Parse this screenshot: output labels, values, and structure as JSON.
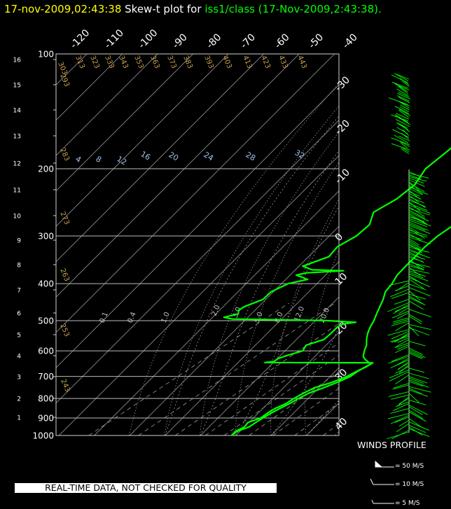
{
  "header": {
    "datetime": "17-nov-2009,02:43:38",
    "title_prefix": " Skew-t plot for ",
    "source": "iss1/class",
    "source_time": "(17-Nov-2009,2:43:38).",
    "colors": {
      "datetime": "#ffff00",
      "prefix": "#ffffff",
      "source": "#00ff00"
    }
  },
  "quality_note": "REAL-TIME DATA, NOT CHECKED FOR QUALITY",
  "winds_profile": {
    "label": "WINDS PROFILE",
    "legend": [
      {
        "label": "= 50 M/S",
        "icon": "pennant-barb-icon"
      },
      {
        "label": "= 10 M/S",
        "icon": "full-barb-icon"
      },
      {
        "label": "= 5 M/S",
        "icon": "half-barb-icon"
      }
    ]
  },
  "chart_data": {
    "type": "line",
    "diagram": "skew-T log-P",
    "pressure_axis": {
      "scale": "log",
      "range_hpa": [
        100,
        1000
      ],
      "tick_labels": [
        "100",
        "200",
        "300",
        "400",
        "500",
        "600",
        "700",
        "800",
        "900",
        "1000"
      ],
      "tick_values": [
        100,
        200,
        300,
        400,
        500,
        600,
        700,
        800,
        900,
        1000
      ]
    },
    "height_axis": {
      "unit": "km",
      "tick_labels": [
        "1",
        "2",
        "3",
        "4",
        "5",
        "6",
        "7",
        "8",
        "9",
        "10",
        "11",
        "12",
        "13",
        "14",
        "15",
        "16"
      ]
    },
    "temperature_axis": {
      "unit": "°C",
      "top_labels": [
        "-120",
        "-110",
        "-100",
        "-90",
        "-80",
        "-70",
        "-60",
        "-50",
        "-40"
      ],
      "right_labels": [
        "-30",
        "-20",
        "-10",
        "0",
        "10",
        "20",
        "30",
        "40"
      ]
    },
    "dry_adiabat_labels": [
      "303",
      "313",
      "323",
      "333",
      "343",
      "353",
      "363",
      "373",
      "383",
      "393",
      "403",
      "413",
      "423",
      "433",
      "443",
      "293",
      "283",
      "273",
      "263",
      "253",
      "243"
    ],
    "mixing_ratio_labels_upper": [
      "4",
      "8",
      "12",
      "16",
      "20",
      "24",
      "28",
      "32"
    ],
    "mixing_ratio_labels_lower": [
      "0.1",
      "0.4",
      "1.0",
      "2.0",
      "3.0",
      "5.0",
      "8.0",
      "12.0",
      "20.0"
    ],
    "series": [
      {
        "name": "Temperature",
        "color": "#00ff00",
        "points": [
          [
            1000,
            -1.2
          ],
          [
            975,
            -1.6
          ],
          [
            950,
            -0.4
          ],
          [
            925,
            -0.6
          ],
          [
            900,
            -0.8
          ],
          [
            875,
            -0.8
          ],
          [
            850,
            -0.6
          ],
          [
            825,
            -0.2
          ],
          [
            800,
            -0.1
          ],
          [
            775,
            0.2
          ],
          [
            750,
            1.8
          ],
          [
            725,
            3.1
          ],
          [
            700,
            3.9
          ],
          [
            680,
            3.5
          ],
          [
            660,
            3.5
          ],
          [
            650,
            3.7
          ],
          [
            640,
            1.6
          ],
          [
            630,
            -0.5
          ],
          [
            620,
            -2.2
          ],
          [
            600,
            -4.5
          ],
          [
            580,
            -6.6
          ],
          [
            560,
            -9.4
          ],
          [
            540,
            -12.0
          ],
          [
            520,
            -14.3
          ],
          [
            500,
            -16.4
          ],
          [
            480,
            -18.9
          ],
          [
            460,
            -21.4
          ],
          [
            440,
            -24.0
          ],
          [
            420,
            -27.1
          ],
          [
            400,
            -29.1
          ],
          [
            380,
            -31.8
          ],
          [
            360,
            -33.7
          ],
          [
            340,
            -35.6
          ],
          [
            320,
            -37.6
          ],
          [
            300,
            -39.2
          ],
          [
            280,
            -40.0
          ],
          [
            260,
            -41.2
          ],
          [
            240,
            -42.5
          ],
          [
            220,
            -44.0
          ],
          [
            200,
            -46.5
          ],
          [
            180,
            -49.0
          ],
          [
            160,
            -52.2
          ],
          [
            150,
            -54.3
          ],
          [
            140,
            -57.9
          ],
          [
            130,
            -60.1
          ],
          [
            120,
            -61.6
          ],
          [
            110,
            -64.7
          ],
          [
            100,
            -67.6
          ]
        ]
      },
      {
        "name": "Dewpoint",
        "color": "#00ff00",
        "points": [
          [
            1000,
            -1.2
          ],
          [
            975,
            -2.1
          ],
          [
            950,
            -1.7
          ],
          [
            925,
            -2.8
          ],
          [
            900,
            -1.4
          ],
          [
            875,
            -1.8
          ],
          [
            850,
            -1.9
          ],
          [
            825,
            -1.2
          ],
          [
            800,
            -1.4
          ],
          [
            775,
            -1.3
          ],
          [
            750,
            -0.8
          ],
          [
            725,
            1.6
          ],
          [
            700,
            2.9
          ],
          [
            680,
            3.2
          ],
          [
            660,
            3.7
          ],
          [
            645,
            3.7
          ],
          [
            644,
            -27.0
          ],
          [
            640,
            -24.9
          ],
          [
            630,
            -25.2
          ],
          [
            620,
            -24.5
          ],
          [
            600,
            -21.9
          ],
          [
            580,
            -23.7
          ],
          [
            560,
            -21.4
          ],
          [
            540,
            -22.4
          ],
          [
            520,
            -23.6
          ],
          [
            510,
            -23.4
          ],
          [
            505,
            -20.7
          ],
          [
            500,
            -29.8
          ],
          [
            495,
            -57.3
          ],
          [
            490,
            -60.4
          ],
          [
            480,
            -58.0
          ],
          [
            470,
            -59.6
          ],
          [
            460,
            -59.8
          ],
          [
            440,
            -58.0
          ],
          [
            420,
            -59.4
          ],
          [
            400,
            -58.5
          ],
          [
            390,
            -55.0
          ],
          [
            380,
            -60.3
          ],
          [
            375,
            -58.6
          ],
          [
            370,
            -49.1
          ],
          [
            368,
            -58.4
          ],
          [
            360,
            -62.8
          ],
          [
            340,
            -60.0
          ],
          [
            320,
            -62.4
          ],
          [
            300,
            -62.2
          ],
          [
            280,
            -64.0
          ],
          [
            260,
            -68.8
          ],
          [
            240,
            -68.7
          ],
          [
            220,
            -70.5
          ],
          [
            200,
            -75.1
          ],
          [
            180,
            -77.4
          ],
          [
            160,
            -80.3
          ],
          [
            140,
            -84.6
          ],
          [
            120,
            -88.7
          ],
          [
            100,
            -92.5
          ]
        ]
      }
    ]
  }
}
